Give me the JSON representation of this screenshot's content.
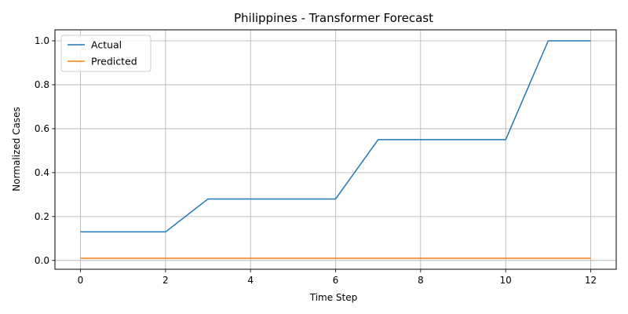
{
  "chart_data": {
    "type": "line",
    "title": "Philippines - Transformer Forecast",
    "xlabel": "Time Step",
    "ylabel": "Normalized Cases",
    "x": [
      0,
      1,
      2,
      3,
      4,
      5,
      6,
      7,
      8,
      9,
      10,
      11,
      12
    ],
    "xlim": [
      -0.6,
      12.6
    ],
    "ylim": [
      -0.04,
      1.05
    ],
    "xticks": [
      "0",
      "2",
      "4",
      "6",
      "8",
      "10",
      "12"
    ],
    "yticks": [
      "0.0",
      "0.2",
      "0.4",
      "0.6",
      "0.8",
      "1.0"
    ],
    "grid": true,
    "legend_position": "top-left",
    "series": [
      {
        "name": "Actual",
        "color": "#1f77b4",
        "values": [
          0.13,
          0.13,
          0.13,
          0.28,
          0.28,
          0.28,
          0.28,
          0.55,
          0.55,
          0.55,
          0.55,
          1.0,
          1.0
        ]
      },
      {
        "name": "Predicted",
        "color": "#ff7f0e",
        "values": [
          0.01,
          0.01,
          0.01,
          0.01,
          0.01,
          0.01,
          0.01,
          0.01,
          0.01,
          0.01,
          0.01,
          0.01,
          0.01
        ]
      }
    ]
  }
}
